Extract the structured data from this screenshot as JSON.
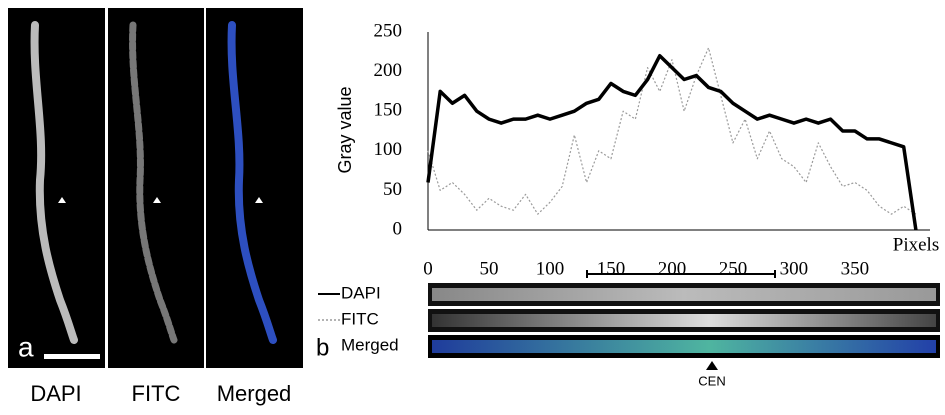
{
  "chart_data": {
    "type": "line",
    "y_label": "Gray value",
    "x_label": "Pixels",
    "x": [
      0,
      10,
      20,
      30,
      40,
      50,
      60,
      70,
      80,
      90,
      100,
      110,
      120,
      130,
      140,
      150,
      160,
      170,
      180,
      190,
      200,
      210,
      220,
      230,
      240,
      250,
      260,
      270,
      280,
      290,
      300,
      310,
      320,
      330,
      340,
      350,
      360,
      370,
      380,
      390,
      400
    ],
    "series": [
      {
        "name": "DAPI",
        "color": "#000000",
        "style": "solid",
        "values": [
          60,
          175,
          160,
          170,
          150,
          140,
          135,
          140,
          140,
          145,
          140,
          145,
          150,
          160,
          165,
          185,
          175,
          170,
          190,
          220,
          205,
          190,
          195,
          180,
          175,
          160,
          150,
          140,
          145,
          140,
          135,
          140,
          135,
          140,
          125,
          125,
          115,
          115,
          110,
          105,
          0
        ]
      },
      {
        "name": "FITC",
        "color": "#9a9a9a",
        "style": "dotted",
        "values": [
          100,
          50,
          60,
          45,
          25,
          40,
          30,
          25,
          45,
          20,
          35,
          55,
          120,
          60,
          100,
          90,
          150,
          140,
          205,
          175,
          215,
          150,
          195,
          230,
          170,
          110,
          140,
          90,
          125,
          90,
          80,
          60,
          110,
          80,
          55,
          60,
          50,
          30,
          20,
          30,
          20
        ]
      }
    ],
    "xlim": [
      0,
      405
    ],
    "ylim": [
      0,
      250
    ],
    "xticks": [
      0,
      50,
      100,
      150,
      200,
      250,
      300,
      350
    ],
    "yticks": [
      0,
      50,
      100,
      150,
      200,
      250
    ],
    "grid": false
  },
  "images": {
    "labels": [
      "DAPI",
      "FITC",
      "Merged"
    ],
    "panel_a": "a",
    "panel_b": "b",
    "marker": "CEN"
  }
}
